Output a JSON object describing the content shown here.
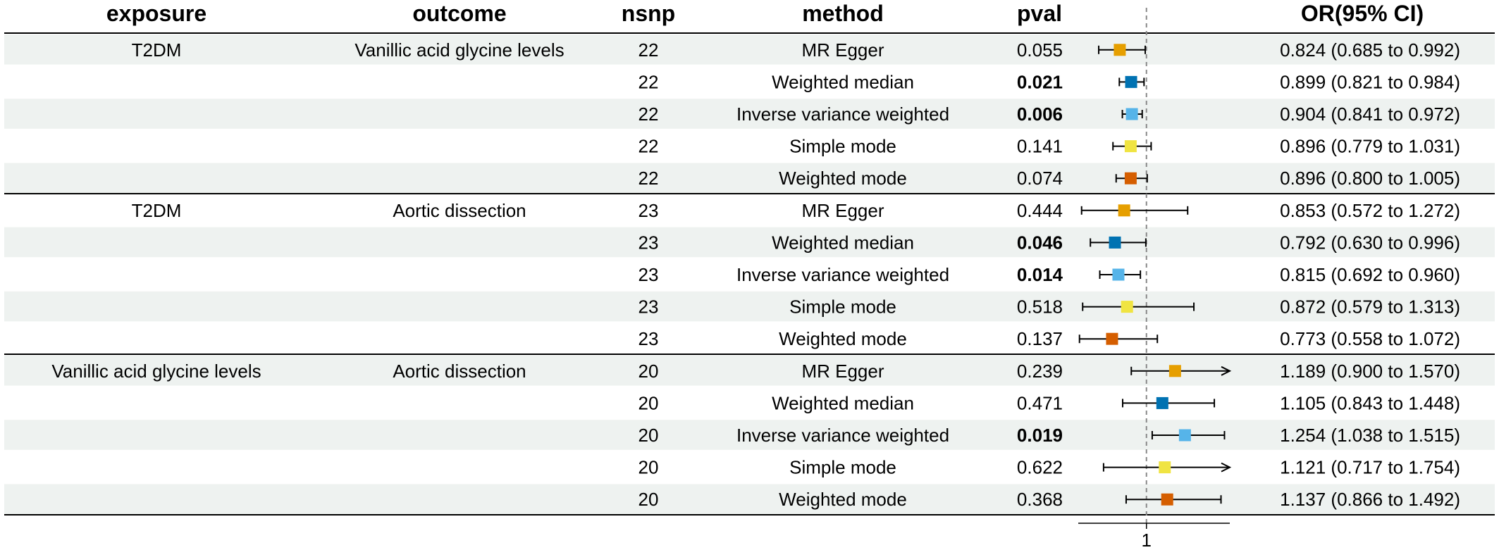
{
  "chart_data": {
    "type": "forest",
    "columns": {
      "exposure": "exposure",
      "outcome": "outcome",
      "nsnp": "nsnp",
      "method": "method",
      "pval": "pval",
      "or": "OR(95% CI)"
    },
    "reference_line": 1,
    "reference_label": "1",
    "xlim": [
      0.55,
      1.55
    ],
    "groups": [
      {
        "exposure": "T2DM",
        "outcome": "Vanillic acid glycine levels",
        "rows": [
          {
            "nsnp": "22",
            "method": "MR Egger",
            "pval": "0.055",
            "significant": false,
            "or": 0.824,
            "lo": 0.685,
            "hi": 0.992,
            "or_text": "0.824 (0.685 to 0.992)",
            "color": "#E69F00"
          },
          {
            "nsnp": "22",
            "method": "Weighted median",
            "pval": "0.021",
            "significant": true,
            "or": 0.899,
            "lo": 0.821,
            "hi": 0.984,
            "or_text": "0.899 (0.821 to 0.984)",
            "color": "#0072B2"
          },
          {
            "nsnp": "22",
            "method": "Inverse variance weighted",
            "pval": "0.006",
            "significant": true,
            "or": 0.904,
            "lo": 0.841,
            "hi": 0.972,
            "or_text": "0.904 (0.841 to 0.972)",
            "color": "#56B4E9"
          },
          {
            "nsnp": "22",
            "method": "Simple mode",
            "pval": "0.141",
            "significant": false,
            "or": 0.896,
            "lo": 0.779,
            "hi": 1.031,
            "or_text": "0.896 (0.779 to 1.031)",
            "color": "#F0E442"
          },
          {
            "nsnp": "22",
            "method": "Weighted mode",
            "pval": "0.074",
            "significant": false,
            "or": 0.896,
            "lo": 0.8,
            "hi": 1.005,
            "or_text": "0.896 (0.800 to 1.005)",
            "color": "#D55E00"
          }
        ]
      },
      {
        "exposure": "T2DM",
        "outcome": "Aortic dissection",
        "rows": [
          {
            "nsnp": "23",
            "method": "MR Egger",
            "pval": "0.444",
            "significant": false,
            "or": 0.853,
            "lo": 0.572,
            "hi": 1.272,
            "or_text": "0.853 (0.572 to 1.272)",
            "color": "#E69F00"
          },
          {
            "nsnp": "23",
            "method": "Weighted median",
            "pval": "0.046",
            "significant": true,
            "or": 0.792,
            "lo": 0.63,
            "hi": 0.996,
            "or_text": "0.792 (0.630 to 0.996)",
            "color": "#0072B2"
          },
          {
            "nsnp": "23",
            "method": "Inverse variance weighted",
            "pval": "0.014",
            "significant": true,
            "or": 0.815,
            "lo": 0.692,
            "hi": 0.96,
            "or_text": "0.815 (0.692 to 0.960)",
            "color": "#56B4E9"
          },
          {
            "nsnp": "23",
            "method": "Simple mode",
            "pval": "0.518",
            "significant": false,
            "or": 0.872,
            "lo": 0.579,
            "hi": 1.313,
            "or_text": "0.872 (0.579 to 1.313)",
            "color": "#F0E442"
          },
          {
            "nsnp": "23",
            "method": "Weighted mode",
            "pval": "0.137",
            "significant": false,
            "or": 0.773,
            "lo": 0.558,
            "hi": 1.072,
            "or_text": "0.773 (0.558 to 1.072)",
            "color": "#D55E00"
          }
        ]
      },
      {
        "exposure": "Vanillic acid glycine levels",
        "outcome": "Aortic dissection",
        "rows": [
          {
            "nsnp": "20",
            "method": "MR Egger",
            "pval": "0.239",
            "significant": false,
            "or": 1.189,
            "lo": 0.9,
            "hi": 1.57,
            "or_text": "1.189 (0.900 to 1.570)",
            "color": "#E69F00"
          },
          {
            "nsnp": "20",
            "method": "Weighted median",
            "pval": "0.471",
            "significant": false,
            "or": 1.105,
            "lo": 0.843,
            "hi": 1.448,
            "or_text": "1.105 (0.843 to 1.448)",
            "color": "#0072B2"
          },
          {
            "nsnp": "20",
            "method": "Inverse variance weighted",
            "pval": "0.019",
            "significant": true,
            "or": 1.254,
            "lo": 1.038,
            "hi": 1.515,
            "or_text": "1.254 (1.038 to 1.515)",
            "color": "#56B4E9"
          },
          {
            "nsnp": "20",
            "method": "Simple mode",
            "pval": "0.622",
            "significant": false,
            "or": 1.121,
            "lo": 0.717,
            "hi": 1.754,
            "or_text": "1.121 (0.717 to 1.754)",
            "color": "#F0E442"
          },
          {
            "nsnp": "20",
            "method": "Weighted mode",
            "pval": "0.368",
            "significant": false,
            "or": 1.137,
            "lo": 0.866,
            "hi": 1.492,
            "or_text": "1.137 (0.866 to 1.492)",
            "color": "#D55E00"
          }
        ]
      }
    ],
    "colors": {
      "stripe": "#EEF2F0",
      "rule": "#000000",
      "ref_line": "#888888"
    }
  }
}
